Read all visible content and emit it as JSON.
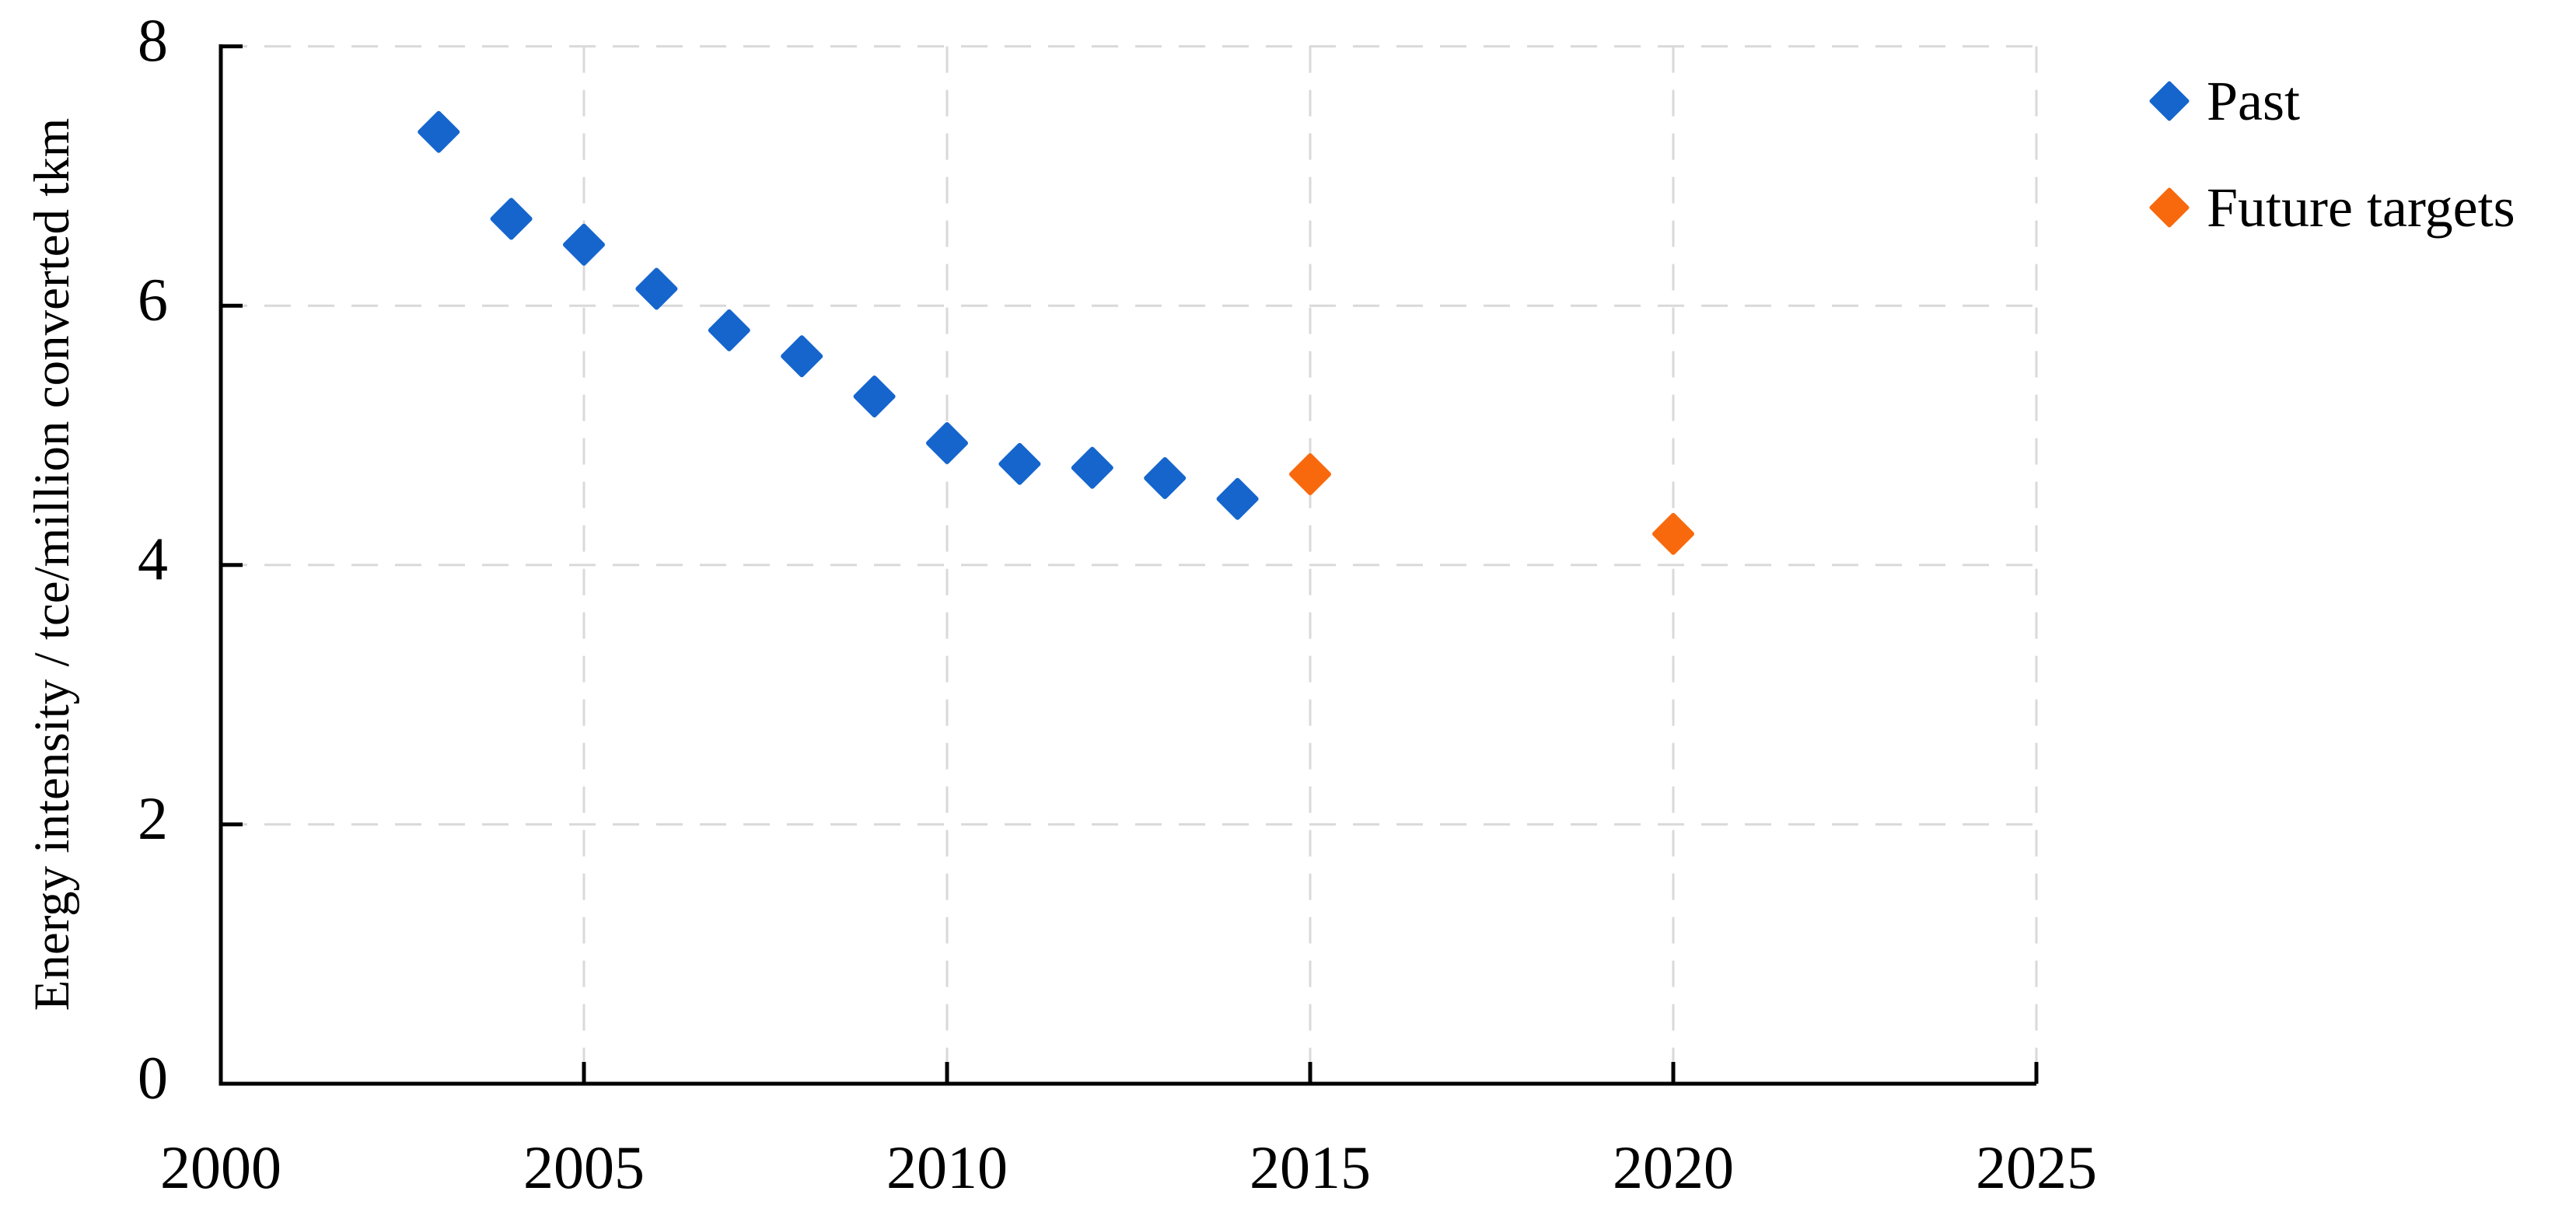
{
  "figure": {
    "background": "#ffffff"
  },
  "y_axis": {
    "title": "Energy intensity / tce/million converted tkm",
    "tick_labels": [
      "0",
      "2",
      "4",
      "6",
      "8"
    ],
    "tick_values": [
      0,
      2,
      4,
      6,
      8
    ],
    "range": [
      0,
      8
    ]
  },
  "x_axis": {
    "tick_labels": [
      "2000",
      "2005",
      "2010",
      "2015",
      "2020",
      "2025"
    ],
    "tick_values": [
      2000,
      2005,
      2010,
      2015,
      2020,
      2025
    ],
    "range": [
      2000,
      2025
    ]
  },
  "legend": {
    "items": [
      {
        "label": "Past",
        "color": "#1565CD",
        "marker": "diamond"
      },
      {
        "label": "Future targets",
        "color": "#F8690D",
        "marker": "diamond"
      }
    ]
  },
  "colors": {
    "past_series": "#1565CD",
    "future_series": "#F8690D",
    "gridline": "#D9D9D9",
    "axis": "#000000",
    "text": "#000000"
  },
  "chart_data": {
    "type": "scatter",
    "marker": "diamond",
    "grid": "dashed",
    "legend_position": "top-right",
    "title": "",
    "xlabel": "",
    "ylabel": "Energy intensity / tce/million converted tkm",
    "xlim": [
      2000,
      2025
    ],
    "ylim": [
      0,
      8
    ],
    "x_ticks": [
      2000,
      2005,
      2010,
      2015,
      2020,
      2025
    ],
    "y_ticks": [
      0,
      2,
      4,
      6,
      8
    ],
    "series": [
      {
        "name": "Past",
        "color": "#1565CD",
        "points": [
          [
            2003,
            7.34
          ],
          [
            2004,
            6.67
          ],
          [
            2005,
            6.47
          ],
          [
            2006,
            6.13
          ],
          [
            2007,
            5.81
          ],
          [
            2008,
            5.61
          ],
          [
            2009,
            5.3
          ],
          [
            2010,
            4.94
          ],
          [
            2011,
            4.78
          ],
          [
            2012,
            4.75
          ],
          [
            2013,
            4.67
          ],
          [
            2014,
            4.51
          ]
        ]
      },
      {
        "name": "Future targets",
        "color": "#F8690D",
        "points": [
          [
            2015,
            4.7
          ],
          [
            2020,
            4.24
          ]
        ]
      }
    ]
  }
}
